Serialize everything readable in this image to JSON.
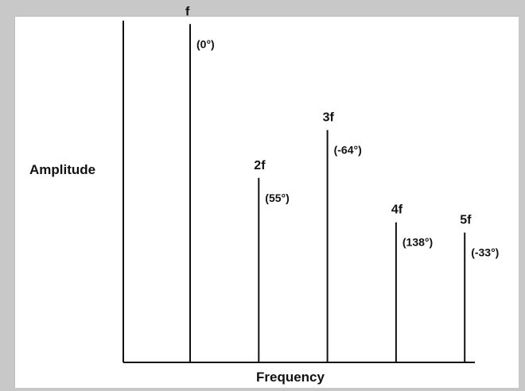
{
  "chart_data": {
    "type": "bar",
    "title": "",
    "xlabel": "Frequency",
    "ylabel": "Amplitude",
    "ylim": [
      0,
      1
    ],
    "grid": false,
    "lines": [
      {
        "label": "f",
        "phase": "(0°)",
        "x": 1,
        "amplitude": 0.99
      },
      {
        "label": "2f",
        "phase": "(55°)",
        "x": 2,
        "amplitude": 0.54
      },
      {
        "label": "3f",
        "phase": "(-64°)",
        "x": 3,
        "amplitude": 0.68
      },
      {
        "label": "4f",
        "phase": "(138°)",
        "x": 4,
        "amplitude": 0.41
      },
      {
        "label": "5f",
        "phase": "(-33°)",
        "x": 5,
        "amplitude": 0.38
      }
    ]
  },
  "colors": {
    "frame": "#c8c8c8",
    "line": "#111111",
    "panel": "#ffffff"
  }
}
